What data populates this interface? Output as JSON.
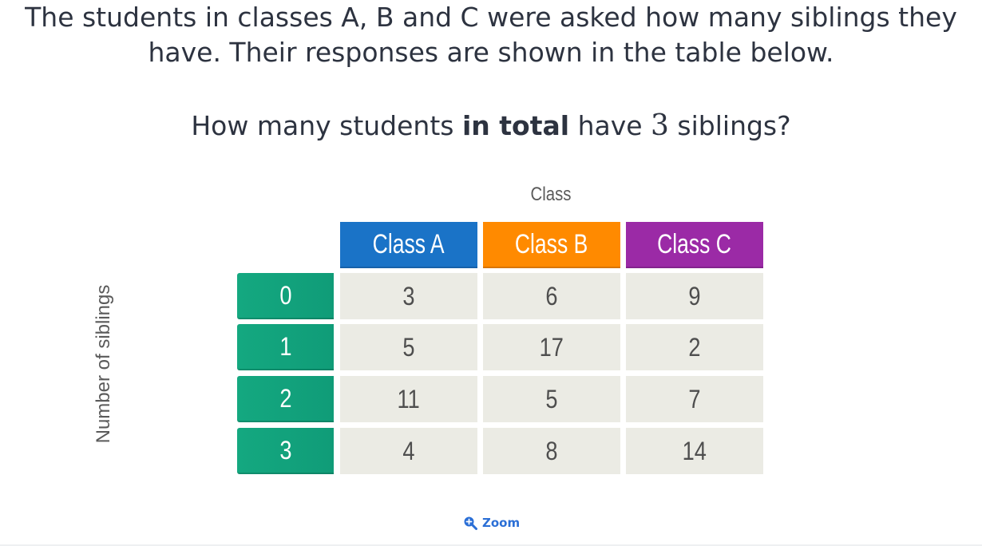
{
  "intro": {
    "line1": "The students in classes A, B and C were asked how many siblings they",
    "line2": "have. Their responses are shown in the table below."
  },
  "question": {
    "before": "How many students ",
    "bold": "in total",
    "middle": " have ",
    "number": "3",
    "after": " siblings?"
  },
  "table": {
    "column_axis_label": "Class",
    "row_axis_label": "Number of siblings",
    "columns": [
      {
        "label": "Class A",
        "color": "#1a73c7"
      },
      {
        "label": "Class B",
        "color": "#ff8a00"
      },
      {
        "label": "Class C",
        "color": "#9b2aa6"
      }
    ],
    "rows": [
      {
        "label": "0",
        "values": [
          "3",
          "6",
          "9"
        ]
      },
      {
        "label": "1",
        "values": [
          "5",
          "17",
          "2"
        ]
      },
      {
        "label": "2",
        "values": [
          "11",
          "5",
          "7"
        ]
      },
      {
        "label": "3",
        "values": [
          "4",
          "8",
          "14"
        ]
      }
    ],
    "row_header_color": "#13a37f",
    "cell_color": "#ebebe4"
  },
  "zoom": {
    "label": "Zoom",
    "icon": "zoom-in-icon"
  }
}
